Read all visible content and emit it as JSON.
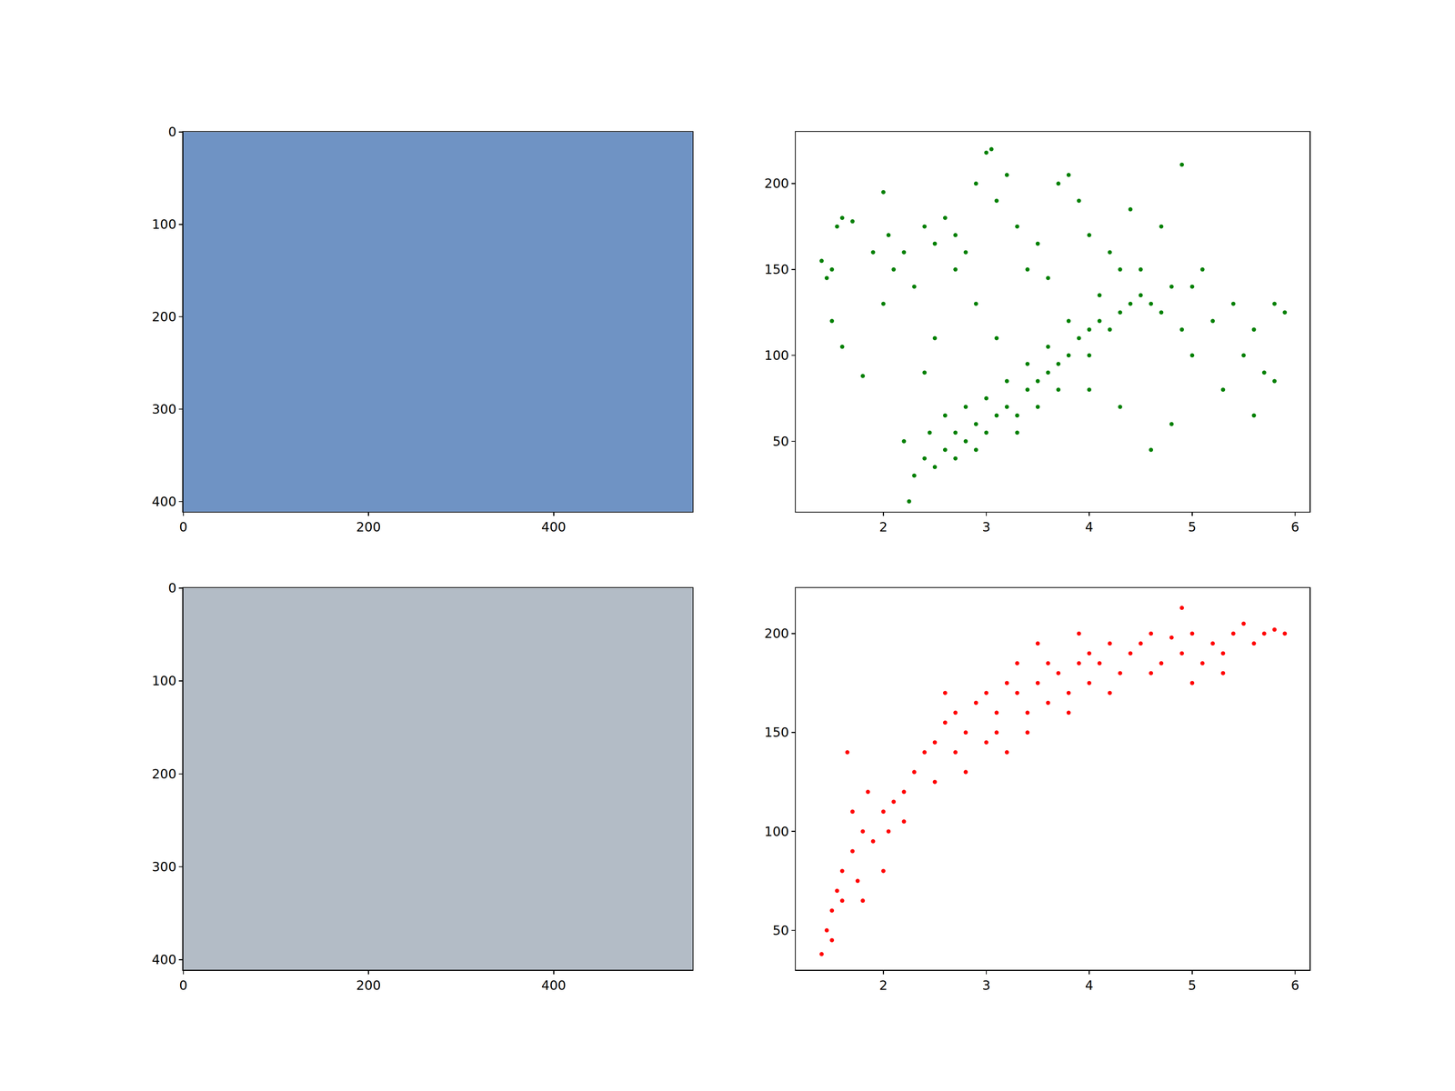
{
  "chart_data": [
    {
      "type": "image",
      "xlim": [
        0,
        550
      ],
      "ylim": [
        411,
        0
      ],
      "xticks": [
        0,
        200,
        400
      ],
      "yticks": [
        0,
        100,
        200,
        300,
        400
      ],
      "grid": false
    },
    {
      "type": "scatter",
      "color": "#008000",
      "marker": "circle",
      "grid": false,
      "xlim": [
        1.15,
        6.14
      ],
      "ylim": [
        9,
        230
      ],
      "xticks": [
        2,
        3,
        4,
        5,
        6
      ],
      "yticks": [
        50,
        100,
        150,
        200
      ],
      "x": [
        1.4,
        1.45,
        1.5,
        1.55,
        1.6,
        1.7,
        1.5,
        1.6,
        1.8,
        1.9,
        2.0,
        2.05,
        2.1,
        2.2,
        2.3,
        2.4,
        2.5,
        2.6,
        2.7,
        2.8,
        2.9,
        3.0,
        3.05,
        3.1,
        3.2,
        3.3,
        3.5,
        3.7,
        3.8,
        4.0,
        4.2,
        4.4,
        4.5,
        4.7,
        4.9,
        5.0,
        5.2,
        5.4,
        5.6,
        5.8,
        5.9,
        5.7,
        5.5,
        5.3,
        5.6,
        5.8,
        4.6,
        4.8,
        4.3,
        4.0,
        3.9,
        3.4,
        3.6,
        4.1,
        4.3,
        4.6,
        4.8,
        5.1,
        2.2,
        2.25,
        2.3,
        2.4,
        2.5,
        2.45,
        2.6,
        2.7,
        2.8,
        2.9,
        3.0,
        3.1,
        3.2,
        3.3,
        3.4,
        3.5,
        3.6,
        3.7,
        3.8,
        3.9,
        4.0,
        4.1,
        4.2,
        4.3,
        4.4,
        4.5,
        2.6,
        2.8,
        3.0,
        3.2,
        3.4,
        3.6,
        3.8,
        4.0,
        3.3,
        3.5,
        3.7,
        2.7,
        2.9,
        4.7,
        4.9,
        5.0,
        3.1,
        2.9,
        2.7,
        2.5,
        2.4,
        2.0
      ],
      "values": [
        155,
        145,
        150,
        175,
        180,
        178,
        120,
        105,
        88,
        160,
        195,
        170,
        150,
        160,
        140,
        175,
        165,
        180,
        170,
        160,
        200,
        218,
        220,
        190,
        205,
        175,
        165,
        200,
        205,
        170,
        160,
        185,
        150,
        175,
        211,
        140,
        120,
        130,
        115,
        130,
        125,
        90,
        100,
        80,
        65,
        85,
        45,
        60,
        70,
        80,
        190,
        150,
        145,
        135,
        150,
        130,
        140,
        150,
        50,
        15,
        30,
        40,
        35,
        55,
        45,
        55,
        50,
        60,
        55,
        65,
        70,
        65,
        80,
        85,
        90,
        95,
        100,
        110,
        115,
        120,
        115,
        125,
        130,
        135,
        65,
        70,
        75,
        85,
        95,
        105,
        120,
        100,
        55,
        70,
        80,
        40,
        45,
        125,
        115,
        100,
        110,
        130,
        150,
        110,
        90,
        130
      ]
    },
    {
      "type": "image",
      "xlim": [
        0,
        550
      ],
      "ylim": [
        411,
        0
      ],
      "xticks": [
        0,
        200,
        400
      ],
      "yticks": [
        0,
        100,
        200,
        300,
        400
      ],
      "grid": false
    },
    {
      "type": "scatter",
      "color": "#ff0000",
      "marker": "circle",
      "grid": false,
      "xlim": [
        1.15,
        6.14
      ],
      "ylim": [
        30,
        223
      ],
      "xticks": [
        2,
        3,
        4,
        5,
        6
      ],
      "yticks": [
        50,
        100,
        150,
        200
      ],
      "x": [
        1.4,
        1.45,
        1.5,
        1.55,
        1.6,
        1.65,
        1.7,
        1.75,
        1.8,
        1.85,
        1.9,
        2.0,
        2.05,
        2.1,
        2.2,
        2.3,
        2.4,
        2.5,
        2.6,
        2.6,
        2.7,
        2.8,
        2.9,
        3.0,
        3.0,
        3.1,
        3.2,
        3.3,
        3.4,
        3.5,
        3.5,
        3.6,
        3.7,
        3.8,
        3.9,
        4.0,
        4.0,
        4.1,
        4.2,
        4.3,
        4.4,
        4.5,
        4.6,
        4.7,
        4.8,
        4.9,
        4.9,
        5.0,
        5.1,
        5.2,
        5.3,
        5.4,
        5.5,
        5.6,
        5.7,
        5.8,
        5.9,
        3.2,
        3.4,
        2.8,
        2.2,
        2.5,
        3.6,
        3.8,
        4.2,
        4.6,
        5.0,
        5.3,
        1.5,
        1.6,
        1.7,
        1.8,
        2.0,
        3.9,
        3.3,
        2.7,
        3.1
      ],
      "values": [
        38,
        50,
        60,
        70,
        80,
        140,
        90,
        75,
        100,
        120,
        95,
        110,
        100,
        115,
        120,
        130,
        140,
        145,
        155,
        170,
        160,
        150,
        165,
        170,
        145,
        160,
        175,
        170,
        160,
        195,
        175,
        185,
        180,
        170,
        185,
        190,
        175,
        185,
        195,
        180,
        190,
        195,
        200,
        185,
        198,
        213,
        190,
        200,
        185,
        195,
        190,
        200,
        205,
        195,
        200,
        202,
        200,
        140,
        150,
        130,
        105,
        125,
        165,
        160,
        170,
        180,
        175,
        180,
        45,
        65,
        110,
        65,
        80,
        200,
        185,
        140,
        150
      ]
    }
  ]
}
